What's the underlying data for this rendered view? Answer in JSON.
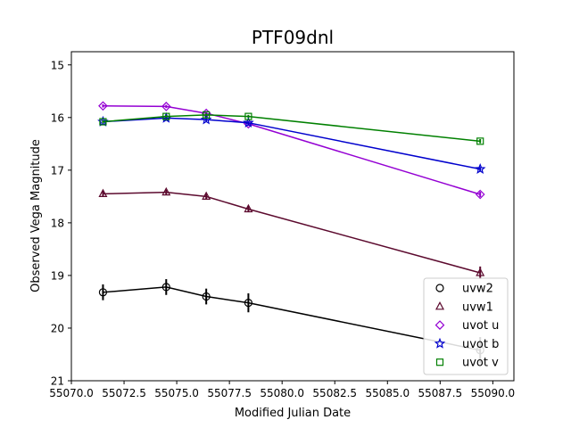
{
  "chart_data": {
    "type": "line",
    "title": "PTF09dnl",
    "xlabel": "Modified Julian Date",
    "ylabel": "Observed Vega Magnitude",
    "xlim": [
      55070.0,
      55091.0
    ],
    "ylim": [
      21.0,
      14.75
    ],
    "y_inverted": true,
    "xticks": [
      55070.0,
      55072.5,
      55075.0,
      55077.5,
      55080.0,
      55082.5,
      55085.0,
      55087.5,
      55090.0
    ],
    "xtick_labels": [
      "55070.0",
      "55072.5",
      "55075.0",
      "55077.5",
      "55080.0",
      "55082.5",
      "55085.0",
      "55087.5",
      "55090.0"
    ],
    "yticks": [
      15,
      16,
      17,
      18,
      19,
      20,
      21
    ],
    "ytick_labels": [
      "15",
      "16",
      "17",
      "18",
      "19",
      "20",
      "21"
    ],
    "grid": false,
    "legend_position": "lower-right",
    "series": [
      {
        "name": "uvw2",
        "color": "#000000",
        "marker": "circle",
        "x": [
          55071.5,
          55074.5,
          55076.4,
          55078.4,
          55089.4
        ],
        "y": [
          19.32,
          19.22,
          19.4,
          19.52,
          20.42
        ],
        "err": [
          0.15,
          0.15,
          0.15,
          0.18,
          0.25
        ]
      },
      {
        "name": "uvw1",
        "color": "#5c0a2e",
        "marker": "triangle",
        "x": [
          55071.5,
          55074.5,
          55076.4,
          55078.4,
          55089.4
        ],
        "y": [
          17.45,
          17.42,
          17.5,
          17.74,
          18.95
        ],
        "err": [
          0.05,
          0.05,
          0.05,
          0.06,
          0.12
        ]
      },
      {
        "name": "uvot u",
        "color": "#9400d3",
        "marker": "diamond",
        "x": [
          55071.5,
          55074.5,
          55076.4,
          55078.4,
          55089.4
        ],
        "y": [
          15.78,
          15.79,
          15.92,
          16.12,
          17.46
        ],
        "err": [
          0.03,
          0.03,
          0.04,
          0.04,
          0.05
        ]
      },
      {
        "name": "uvot b",
        "color": "#0000cd",
        "marker": "star",
        "x": [
          55071.5,
          55074.5,
          55076.4,
          55078.4,
          55089.4
        ],
        "y": [
          16.08,
          16.01,
          16.04,
          16.1,
          16.98
        ],
        "err": [
          0.03,
          0.03,
          0.03,
          0.03,
          0.04
        ]
      },
      {
        "name": "uvot v",
        "color": "#008000",
        "marker": "square",
        "x": [
          55071.5,
          55074.5,
          55076.4,
          55078.4,
          55089.4
        ],
        "y": [
          16.08,
          15.98,
          15.95,
          15.98,
          16.45
        ],
        "err": [
          0.03,
          0.03,
          0.03,
          0.03,
          0.04
        ]
      }
    ]
  }
}
